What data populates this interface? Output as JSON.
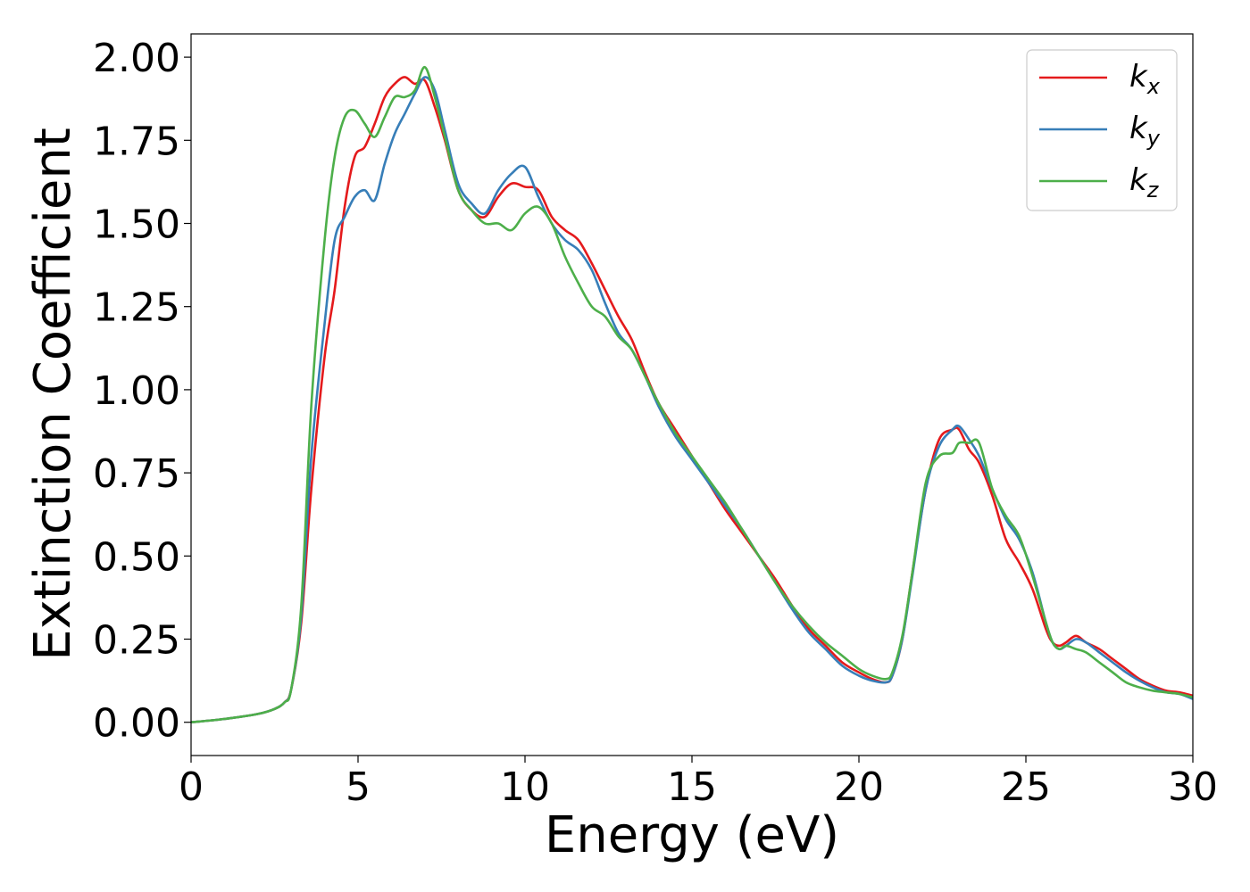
{
  "chart_data": {
    "type": "line",
    "xlabel": "Energy (eV)",
    "ylabel": "Extinction Coefficient",
    "xlim": [
      0,
      30
    ],
    "ylim": [
      -0.1,
      2.07
    ],
    "xticks": [
      "0",
      "5",
      "10",
      "15",
      "20",
      "25",
      "30"
    ],
    "yticks": [
      "0.00",
      "0.25",
      "0.50",
      "0.75",
      "1.00",
      "1.25",
      "1.50",
      "1.75",
      "2.00"
    ],
    "grid": false,
    "legend_position": "top-right",
    "series": [
      {
        "name": "k",
        "subscript": "x",
        "color": "#e41a1c",
        "x": [
          0,
          1,
          2,
          2.5,
          2.8,
          3,
          3.3,
          3.6,
          4,
          4.3,
          4.6,
          4.9,
          5.2,
          5.5,
          5.8,
          6.1,
          6.4,
          6.7,
          7,
          7.3,
          7.6,
          8,
          8.4,
          8.8,
          9.2,
          9.6,
          10,
          10.4,
          10.8,
          11.2,
          11.6,
          12,
          12.4,
          12.8,
          13.2,
          13.6,
          14,
          14.5,
          15,
          15.5,
          16,
          16.5,
          17,
          17.5,
          18,
          18.5,
          19,
          19.5,
          20,
          20.4,
          20.8,
          21,
          21.3,
          21.6,
          22,
          22.4,
          22.8,
          23,
          23.3,
          23.6,
          24,
          24.4,
          24.8,
          25.2,
          25.6,
          25.8,
          26,
          26.2,
          26.5,
          26.8,
          27.2,
          27.6,
          28,
          28.4,
          28.8,
          29.2,
          29.6,
          30
        ],
        "y": [
          0,
          0.01,
          0.025,
          0.04,
          0.06,
          0.1,
          0.3,
          0.7,
          1.1,
          1.3,
          1.55,
          1.7,
          1.73,
          1.8,
          1.88,
          1.92,
          1.94,
          1.92,
          1.93,
          1.85,
          1.75,
          1.6,
          1.54,
          1.52,
          1.58,
          1.62,
          1.61,
          1.6,
          1.52,
          1.48,
          1.45,
          1.38,
          1.3,
          1.22,
          1.15,
          1.05,
          0.96,
          0.88,
          0.8,
          0.72,
          0.64,
          0.57,
          0.5,
          0.43,
          0.35,
          0.28,
          0.23,
          0.18,
          0.15,
          0.13,
          0.12,
          0.14,
          0.25,
          0.45,
          0.7,
          0.85,
          0.88,
          0.88,
          0.82,
          0.78,
          0.68,
          0.55,
          0.48,
          0.4,
          0.28,
          0.24,
          0.23,
          0.24,
          0.26,
          0.24,
          0.22,
          0.19,
          0.16,
          0.13,
          0.11,
          0.095,
          0.09,
          0.08
        ]
      },
      {
        "name": "k",
        "subscript": "y",
        "color": "#377eb8",
        "x": [
          0,
          1,
          2,
          2.5,
          2.8,
          3,
          3.3,
          3.6,
          4,
          4.3,
          4.6,
          4.9,
          5.2,
          5.5,
          5.8,
          6.1,
          6.4,
          6.7,
          7,
          7.3,
          7.6,
          8,
          8.4,
          8.8,
          9.2,
          9.6,
          10,
          10.4,
          10.8,
          11.2,
          11.6,
          12,
          12.4,
          12.8,
          13.2,
          13.6,
          14,
          14.5,
          15,
          15.5,
          16,
          16.5,
          17,
          17.5,
          18,
          18.5,
          19,
          19.5,
          20,
          20.4,
          20.8,
          21,
          21.3,
          21.6,
          22,
          22.4,
          22.8,
          23,
          23.3,
          23.6,
          24,
          24.4,
          24.8,
          25.2,
          25.6,
          25.8,
          26,
          26.2,
          26.5,
          26.8,
          27.2,
          27.6,
          28,
          28.4,
          28.8,
          29.2,
          29.6,
          30
        ],
        "y": [
          0,
          0.01,
          0.025,
          0.04,
          0.06,
          0.1,
          0.32,
          0.8,
          1.2,
          1.45,
          1.52,
          1.58,
          1.6,
          1.57,
          1.68,
          1.77,
          1.83,
          1.89,
          1.94,
          1.9,
          1.78,
          1.62,
          1.56,
          1.53,
          1.6,
          1.65,
          1.67,
          1.58,
          1.5,
          1.45,
          1.42,
          1.36,
          1.26,
          1.17,
          1.12,
          1.04,
          0.95,
          0.86,
          0.79,
          0.72,
          0.65,
          0.58,
          0.5,
          0.42,
          0.34,
          0.27,
          0.22,
          0.17,
          0.14,
          0.125,
          0.12,
          0.14,
          0.25,
          0.44,
          0.7,
          0.83,
          0.88,
          0.89,
          0.85,
          0.8,
          0.7,
          0.61,
          0.55,
          0.45,
          0.3,
          0.24,
          0.22,
          0.23,
          0.25,
          0.24,
          0.21,
          0.18,
          0.15,
          0.125,
          0.105,
          0.09,
          0.085,
          0.07
        ]
      },
      {
        "name": "k",
        "subscript": "z",
        "color": "#4daf4a",
        "x": [
          0,
          1,
          2,
          2.5,
          2.8,
          3,
          3.3,
          3.6,
          4,
          4.3,
          4.6,
          4.9,
          5.2,
          5.5,
          5.8,
          6.1,
          6.4,
          6.7,
          7,
          7.3,
          7.6,
          8,
          8.4,
          8.8,
          9.2,
          9.6,
          10,
          10.4,
          10.8,
          11.2,
          11.6,
          12,
          12.4,
          12.8,
          13.2,
          13.6,
          14,
          14.5,
          15,
          15.5,
          16,
          16.5,
          17,
          17.5,
          18,
          18.5,
          19,
          19.5,
          20,
          20.4,
          20.8,
          21,
          21.3,
          21.6,
          22,
          22.4,
          22.8,
          23,
          23.3,
          23.6,
          24,
          24.4,
          24.8,
          25.2,
          25.6,
          25.8,
          26,
          26.2,
          26.5,
          26.8,
          27.2,
          27.6,
          28,
          28.4,
          28.8,
          29.2,
          29.6,
          30
        ],
        "y": [
          0,
          0.01,
          0.025,
          0.04,
          0.06,
          0.1,
          0.35,
          0.95,
          1.45,
          1.7,
          1.82,
          1.84,
          1.8,
          1.76,
          1.82,
          1.88,
          1.88,
          1.9,
          1.97,
          1.88,
          1.76,
          1.6,
          1.54,
          1.5,
          1.5,
          1.48,
          1.53,
          1.55,
          1.5,
          1.4,
          1.32,
          1.25,
          1.22,
          1.16,
          1.12,
          1.04,
          0.96,
          0.87,
          0.8,
          0.73,
          0.66,
          0.58,
          0.5,
          0.42,
          0.35,
          0.29,
          0.24,
          0.2,
          0.16,
          0.14,
          0.13,
          0.15,
          0.26,
          0.45,
          0.72,
          0.8,
          0.81,
          0.84,
          0.84,
          0.84,
          0.7,
          0.62,
          0.56,
          0.44,
          0.3,
          0.24,
          0.22,
          0.23,
          0.22,
          0.21,
          0.18,
          0.15,
          0.12,
          0.105,
          0.095,
          0.09,
          0.085,
          0.075
        ]
      }
    ]
  }
}
